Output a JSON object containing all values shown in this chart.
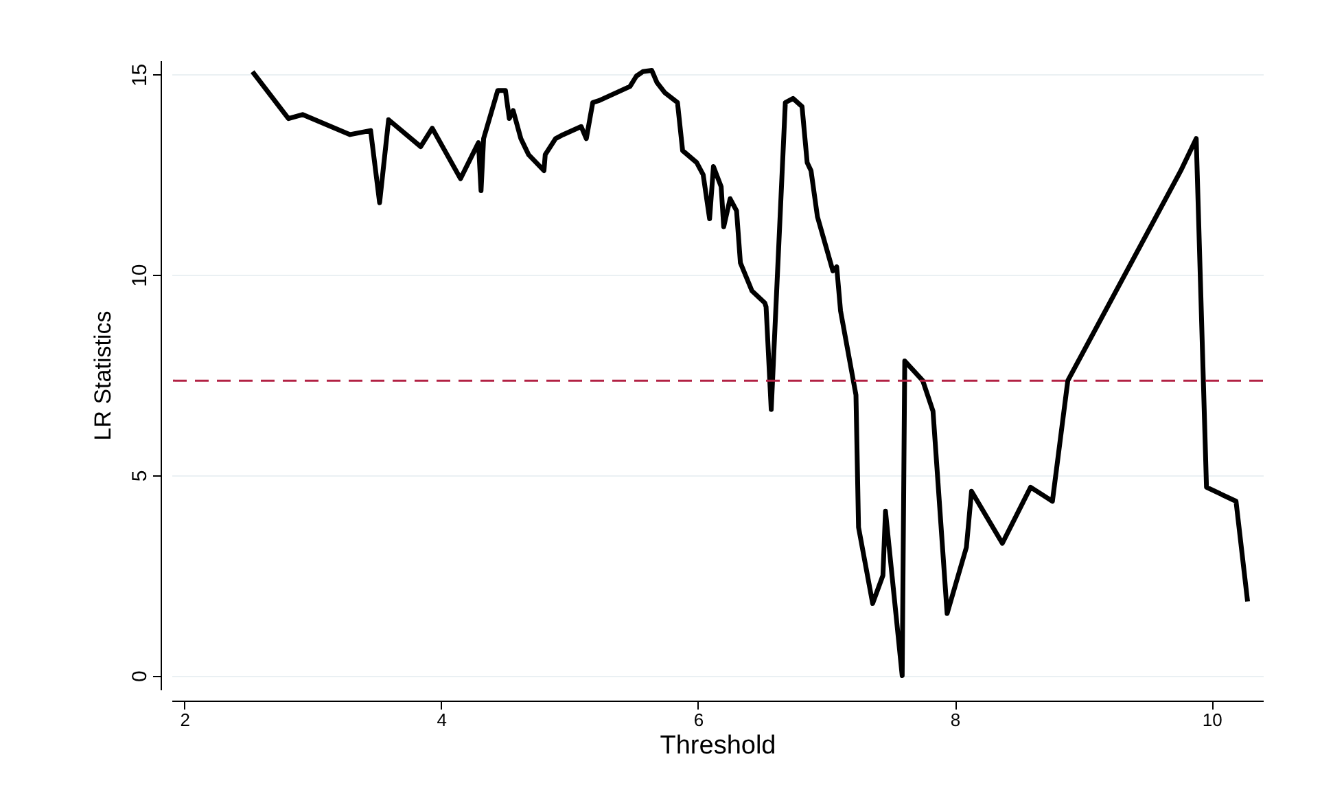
{
  "chart_data": {
    "type": "line",
    "xlabel": "Threshold",
    "ylabel": "LR Statistics",
    "x": [
      2.53,
      2.81,
      2.92,
      3.29,
      3.45,
      3.52,
      3.59,
      3.84,
      3.93,
      4.15,
      4.29,
      4.31,
      4.33,
      4.44,
      4.5,
      4.53,
      4.56,
      4.62,
      4.68,
      4.8,
      4.81,
      4.89,
      4.95,
      5.09,
      5.13,
      5.18,
      5.23,
      5.47,
      5.52,
      5.57,
      5.64,
      5.68,
      5.74,
      5.84,
      5.88,
      5.99,
      6.04,
      6.09,
      6.12,
      6.18,
      6.2,
      6.25,
      6.3,
      6.33,
      6.42,
      6.52,
      6.53,
      6.57,
      6.68,
      6.74,
      6.81,
      6.85,
      6.88,
      6.93,
      7.05,
      7.08,
      7.11,
      7.23,
      7.25,
      7.36,
      7.44,
      7.46,
      7.59,
      7.61,
      7.75,
      7.83,
      7.94,
      8.09,
      8.13,
      8.37,
      8.59,
      8.76,
      8.88,
      9.76,
      9.88,
      9.96,
      10.19,
      10.28
    ],
    "series": [
      {
        "color": "#000000",
        "values": [
          15.07,
          13.9,
          14.0,
          13.5,
          13.6,
          11.8,
          13.87,
          13.2,
          13.66,
          12.4,
          13.3,
          12.1,
          13.4,
          14.6,
          14.6,
          13.9,
          14.1,
          13.4,
          13.0,
          12.6,
          13.0,
          13.4,
          13.5,
          13.7,
          13.4,
          14.3,
          14.35,
          14.7,
          14.96,
          15.07,
          15.1,
          14.8,
          14.55,
          14.3,
          13.1,
          12.8,
          12.5,
          11.4,
          12.7,
          12.2,
          11.2,
          11.9,
          11.6,
          10.3,
          9.6,
          9.3,
          9.2,
          6.64,
          14.3,
          14.4,
          14.2,
          12.8,
          12.6,
          11.45,
          10.1,
          10.2,
          9.1,
          7.0,
          3.7,
          1.8,
          2.5,
          4.1,
          0.0,
          7.85,
          7.36,
          6.6,
          1.55,
          3.2,
          4.6,
          3.3,
          4.7,
          4.35,
          7.36,
          12.6,
          13.4,
          4.7,
          4.35,
          1.85
        ]
      }
    ],
    "xlim": [
      1.9,
      10.4
    ],
    "ylim": [
      -0.35,
      15.35
    ],
    "xticks": [
      2,
      4,
      6,
      8,
      10
    ],
    "yticks": [
      0,
      5,
      10,
      15
    ],
    "grid": "y",
    "line_style": "solid",
    "marker": "none",
    "ref_lines": [
      {
        "axis": "y",
        "value": 7.36,
        "color": "#b22244",
        "line_style": "dashed"
      }
    ]
  }
}
